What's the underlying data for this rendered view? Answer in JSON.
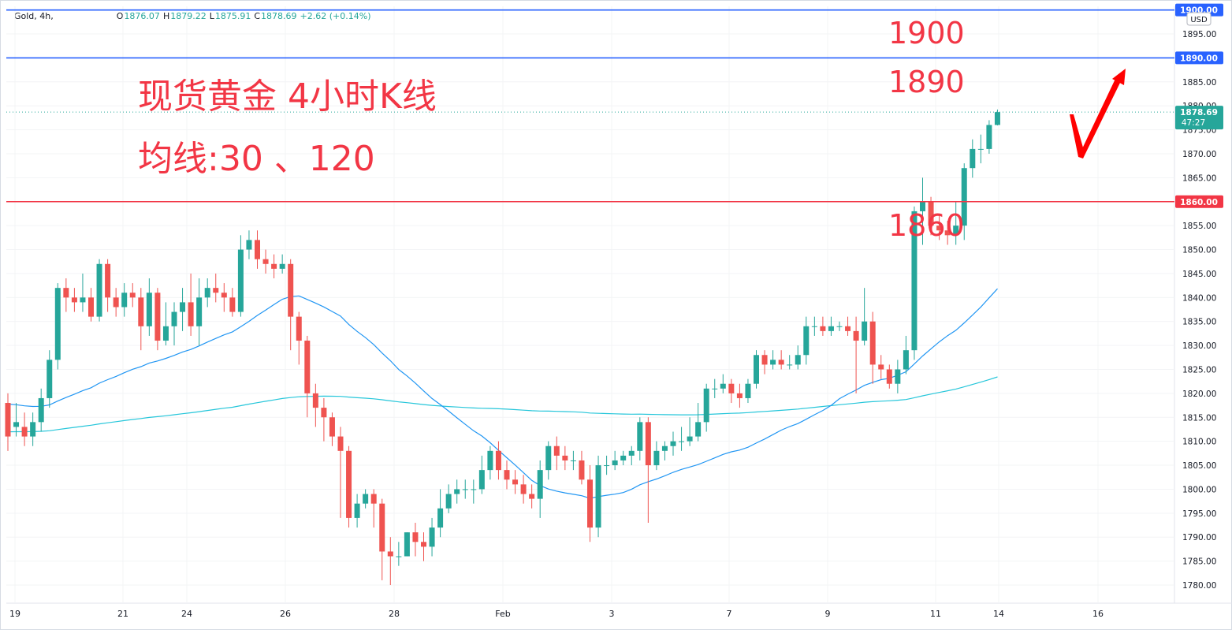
{
  "legend": {
    "symbol": "Gold, 4h,",
    "open_label": "O",
    "open": "1876.07",
    "high_label": "H",
    "high": "1879.22",
    "low_label": "L",
    "low": "1875.91",
    "close_label": "C",
    "close": "1878.69",
    "change": "+2.62 (+0.14%)"
  },
  "currency": "USD",
  "annotations": {
    "title": "现货黄金 4小时K线",
    "ma_label": "均线:30 、120",
    "level_1900": "1900",
    "level_1890": "1890",
    "level_1860": "1860"
  },
  "price_tags": {
    "top_line": "1900.00",
    "mid_line": "1890.00",
    "support_line": "1860.00",
    "last_price": "1878.69",
    "countdown": "47:27"
  },
  "colors": {
    "up": "#26a69a",
    "down": "#ef5350",
    "blue_line": "#2962ff",
    "red_line": "#f23645",
    "ma30": "#2196f3",
    "ma120": "#26c6da",
    "annotation": "#f23645"
  },
  "chart_data": {
    "type": "candlestick",
    "instrument": "Gold",
    "timeframe": "4h",
    "currency": "USD",
    "y_ticks": [
      1780,
      1785,
      1790,
      1795,
      1800,
      1805,
      1810,
      1815,
      1820,
      1825,
      1830,
      1835,
      1840,
      1845,
      1850,
      1855,
      1860,
      1865,
      1870,
      1875,
      1880,
      1885,
      1890,
      1895,
      1900
    ],
    "x_ticks": [
      "19",
      "21",
      "24",
      "26",
      "28",
      "Feb",
      "3",
      "7",
      "9",
      "11",
      "14",
      "16"
    ],
    "horizontal_lines": [
      1900,
      1890,
      1860
    ],
    "moving_averages": [
      "30",
      "120"
    ],
    "candles": [
      [
        1818,
        1811,
        1820,
        1808
      ],
      [
        1813,
        1814,
        1818,
        1811
      ],
      [
        1813,
        1811,
        1816,
        1809
      ],
      [
        1811,
        1814,
        1816,
        1809
      ],
      [
        1814,
        1819,
        1821,
        1812
      ],
      [
        1819,
        1827,
        1829,
        1817
      ],
      [
        1827,
        1842,
        1843,
        1825
      ],
      [
        1842,
        1840,
        1844,
        1837
      ],
      [
        1840,
        1839,
        1842,
        1837
      ],
      [
        1839,
        1840,
        1845,
        1837
      ],
      [
        1840,
        1836,
        1842,
        1835
      ],
      [
        1836,
        1847,
        1848,
        1835
      ],
      [
        1847,
        1840,
        1848,
        1837
      ],
      [
        1840,
        1838,
        1842,
        1836
      ],
      [
        1838,
        1841,
        1843,
        1836
      ],
      [
        1841,
        1840,
        1843,
        1838
      ],
      [
        1840,
        1834,
        1842,
        1829
      ],
      [
        1834,
        1841,
        1844,
        1832
      ],
      [
        1841,
        1831,
        1842,
        1829
      ],
      [
        1831,
        1834,
        1839,
        1830
      ],
      [
        1834,
        1837,
        1839,
        1830
      ],
      [
        1837,
        1839,
        1842,
        1833
      ],
      [
        1839,
        1834,
        1845,
        1832
      ],
      [
        1834,
        1840,
        1844,
        1830
      ],
      [
        1840,
        1842,
        1844,
        1838
      ],
      [
        1842,
        1841,
        1845,
        1839
      ],
      [
        1841,
        1840,
        1843,
        1837
      ],
      [
        1840,
        1837,
        1842,
        1836
      ],
      [
        1837,
        1850,
        1853,
        1836
      ],
      [
        1850,
        1852,
        1854,
        1848
      ],
      [
        1852,
        1848,
        1854,
        1846
      ],
      [
        1848,
        1847,
        1850,
        1845
      ],
      [
        1847,
        1846,
        1849,
        1844
      ],
      [
        1846,
        1847,
        1849,
        1845
      ],
      [
        1847,
        1836,
        1848,
        1829
      ],
      [
        1836,
        1831,
        1837,
        1826
      ],
      [
        1831,
        1820,
        1832,
        1815
      ],
      [
        1820,
        1817,
        1822,
        1813
      ],
      [
        1817,
        1815,
        1819,
        1810
      ],
      [
        1815,
        1811,
        1816,
        1809
      ],
      [
        1811,
        1808,
        1813,
        1794
      ],
      [
        1808,
        1794,
        1809,
        1792
      ],
      [
        1794,
        1797,
        1799,
        1792
      ],
      [
        1797,
        1799,
        1800,
        1796
      ],
      [
        1799,
        1797,
        1800,
        1792
      ],
      [
        1797,
        1787,
        1798,
        1781
      ],
      [
        1787,
        1786,
        1790,
        1780
      ],
      [
        1786,
        1786,
        1789,
        1784
      ],
      [
        1786,
        1791,
        1791,
        1786
      ],
      [
        1791,
        1789,
        1793,
        1786
      ],
      [
        1789,
        1788,
        1791,
        1785
      ],
      [
        1788,
        1792,
        1794,
        1786
      ],
      [
        1792,
        1796,
        1800,
        1790
      ],
      [
        1796,
        1799,
        1801,
        1795
      ],
      [
        1799,
        1800,
        1802,
        1797
      ],
      [
        1800,
        1800,
        1802,
        1798
      ],
      [
        1800,
        1800,
        1802,
        1797
      ],
      [
        1800,
        1804,
        1807,
        1799
      ],
      [
        1804,
        1808,
        1809,
        1802
      ],
      [
        1808,
        1804,
        1810,
        1802
      ],
      [
        1804,
        1802,
        1806,
        1800
      ],
      [
        1802,
        1801,
        1804,
        1799
      ],
      [
        1801,
        1799,
        1803,
        1797
      ],
      [
        1799,
        1798,
        1801,
        1796
      ],
      [
        1798,
        1804,
        1806,
        1794
      ],
      [
        1804,
        1809,
        1810,
        1802
      ],
      [
        1809,
        1807,
        1811,
        1804
      ],
      [
        1807,
        1806,
        1809,
        1804
      ],
      [
        1806,
        1806,
        1808,
        1804
      ],
      [
        1806,
        1802,
        1808,
        1801
      ],
      [
        1802,
        1792,
        1805,
        1789
      ],
      [
        1792,
        1805,
        1807,
        1790
      ],
      [
        1805,
        1805,
        1807,
        1803
      ],
      [
        1805,
        1806,
        1808,
        1804
      ],
      [
        1806,
        1807,
        1808,
        1805
      ],
      [
        1807,
        1808,
        1809,
        1805
      ],
      [
        1808,
        1814,
        1815,
        1806
      ],
      [
        1814,
        1805,
        1815,
        1793
      ],
      [
        1805,
        1808,
        1810,
        1804
      ],
      [
        1808,
        1809,
        1810,
        1806
      ],
      [
        1809,
        1810,
        1812,
        1807
      ],
      [
        1810,
        1810,
        1813,
        1808
      ],
      [
        1810,
        1811,
        1815,
        1809
      ],
      [
        1811,
        1814,
        1818,
        1810
      ],
      [
        1814,
        1821,
        1822,
        1812
      ],
      [
        1821,
        1821,
        1823,
        1819
      ],
      [
        1821,
        1822,
        1824,
        1820
      ],
      [
        1822,
        1820,
        1823,
        1818
      ],
      [
        1820,
        1819,
        1822,
        1817
      ],
      [
        1819,
        1822,
        1823,
        1818
      ],
      [
        1822,
        1828,
        1829,
        1821
      ],
      [
        1828,
        1826,
        1829,
        1824
      ],
      [
        1826,
        1827,
        1829,
        1825
      ],
      [
        1827,
        1826,
        1829,
        1825
      ],
      [
        1826,
        1826,
        1828,
        1825
      ],
      [
        1826,
        1828,
        1830,
        1825
      ],
      [
        1828,
        1834,
        1836,
        1826
      ],
      [
        1834,
        1834,
        1836,
        1832
      ],
      [
        1834,
        1833,
        1836,
        1832
      ],
      [
        1833,
        1834,
        1836,
        1832
      ],
      [
        1834,
        1834,
        1835,
        1833
      ],
      [
        1834,
        1833,
        1836,
        1832
      ],
      [
        1833,
        1831,
        1836,
        1820
      ],
      [
        1831,
        1835,
        1842,
        1830
      ],
      [
        1835,
        1826,
        1837,
        1822
      ],
      [
        1826,
        1825,
        1828,
        1823
      ],
      [
        1825,
        1822,
        1826,
        1821
      ],
      [
        1822,
        1825,
        1827,
        1820
      ],
      [
        1825,
        1829,
        1832,
        1824
      ],
      [
        1829,
        1858,
        1859,
        1827
      ],
      [
        1858,
        1860,
        1865,
        1851
      ],
      [
        1860,
        1855,
        1861,
        1853
      ],
      [
        1855,
        1854,
        1857,
        1852
      ],
      [
        1854,
        1853,
        1856,
        1851
      ],
      [
        1853,
        1855,
        1860,
        1851
      ],
      [
        1855,
        1867,
        1868,
        1852
      ],
      [
        1867,
        1871,
        1873,
        1865
      ],
      [
        1871,
        1871,
        1874,
        1868
      ],
      [
        1871,
        1876,
        1877,
        1870
      ],
      [
        1876,
        1878.69,
        1879.22,
        1875.91
      ]
    ]
  }
}
